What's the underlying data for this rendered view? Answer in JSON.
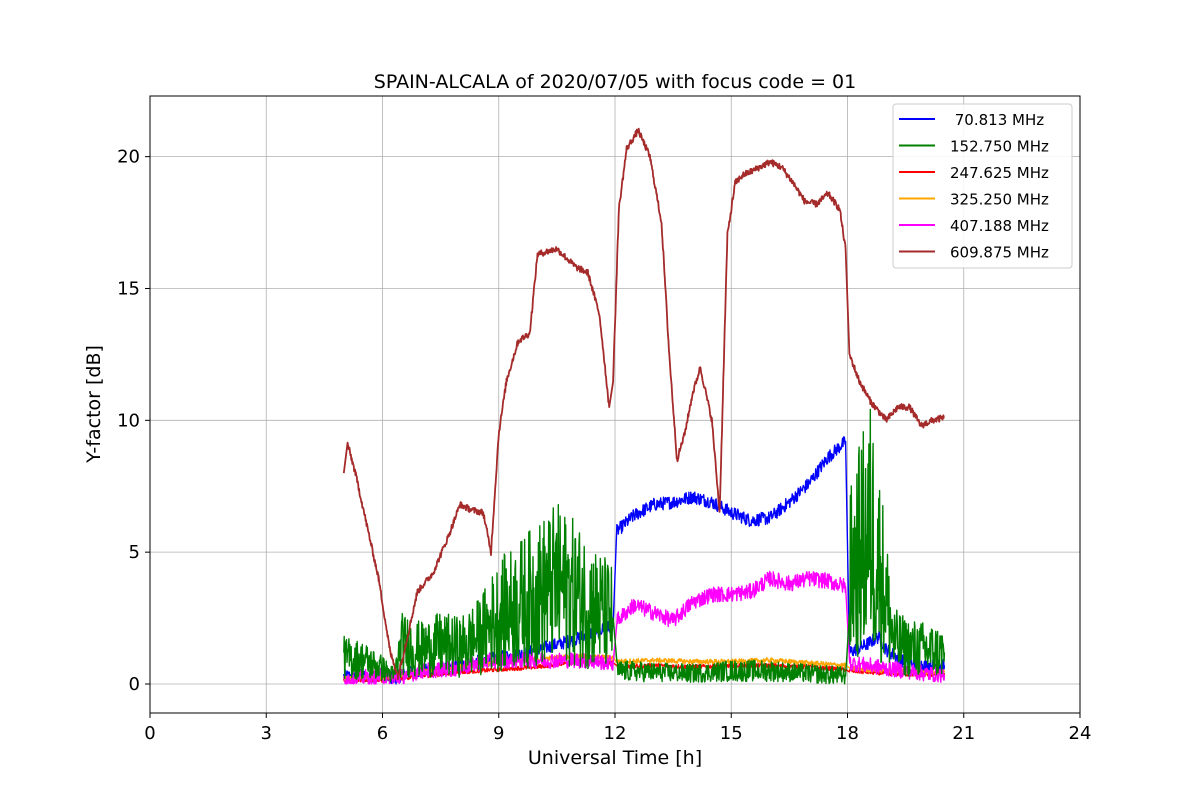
{
  "chart_data": {
    "type": "line",
    "title": "SPAIN-ALCALA of 2020/07/05 with focus code = 01",
    "xlabel": "Universal Time [h]",
    "ylabel": "Y-factor [dB]",
    "xlim": [
      0,
      24
    ],
    "ylim": [
      -1.1,
      22.3
    ],
    "xticks": [
      0,
      3,
      6,
      9,
      12,
      15,
      18,
      21,
      24
    ],
    "yticks": [
      0,
      5,
      10,
      15,
      20
    ],
    "xtick_labels": [
      "0",
      "3",
      "6",
      "9",
      "12",
      "15",
      "18",
      "21",
      "24"
    ],
    "ytick_labels": [
      "0",
      "5",
      "10",
      "15",
      "20"
    ],
    "grid": true,
    "legend_position": "top-right",
    "series": [
      {
        "name": " 70.813 MHz",
        "color": "#0000ff",
        "x": [
          5.0,
          5.5,
          6.0,
          6.3,
          6.5,
          7.0,
          7.5,
          8.0,
          8.5,
          9.0,
          9.5,
          10.0,
          10.5,
          11.0,
          11.5,
          11.95,
          12.05,
          12.5,
          13.0,
          13.5,
          14.0,
          14.5,
          15.0,
          15.5,
          16.0,
          16.5,
          17.0,
          17.5,
          17.95,
          18.05,
          18.5,
          18.8,
          19.0,
          19.5,
          20.0,
          20.5
        ],
        "y": [
          0.3,
          0.3,
          0.35,
          0.2,
          0.35,
          0.5,
          0.55,
          0.7,
          0.85,
          1.0,
          1.1,
          1.3,
          1.5,
          1.7,
          2.0,
          2.2,
          5.8,
          6.4,
          6.8,
          6.9,
          7.1,
          6.9,
          6.5,
          6.2,
          6.3,
          6.9,
          7.6,
          8.6,
          9.2,
          1.2,
          1.5,
          1.8,
          1.3,
          0.8,
          0.7,
          0.7
        ],
        "noise": 0.25
      },
      {
        "name": "152.750 MHz",
        "color": "#008000",
        "x": [
          5.0,
          5.5,
          6.0,
          6.3,
          6.5,
          7.0,
          7.5,
          8.0,
          8.5,
          9.0,
          9.5,
          10.0,
          10.5,
          11.0,
          11.5,
          11.95,
          12.05,
          13.0,
          14.0,
          15.0,
          16.0,
          17.0,
          17.95,
          18.05,
          18.3,
          18.6,
          18.9,
          19.2,
          19.5,
          20.0,
          20.5
        ],
        "y": [
          1.0,
          0.9,
          0.6,
          0.3,
          1.5,
          1.3,
          1.5,
          1.4,
          1.8,
          2.6,
          3.0,
          3.4,
          3.8,
          3.4,
          2.9,
          2.5,
          0.5,
          0.45,
          0.4,
          0.5,
          0.5,
          0.4,
          0.3,
          4.0,
          5.0,
          6.0,
          4.0,
          1.6,
          1.4,
          1.3,
          1.2
        ],
        "noise": 1.8
      },
      {
        "name": "247.625 MHz",
        "color": "#ff0000",
        "x": [
          5.0,
          6.0,
          7.0,
          8.0,
          9.0,
          10.0,
          11.0,
          11.95,
          12.05,
          13.0,
          14.0,
          15.0,
          16.0,
          17.0,
          17.95,
          18.05,
          19.0,
          20.0,
          20.5
        ],
        "y": [
          0.15,
          0.15,
          0.3,
          0.45,
          0.55,
          0.65,
          0.85,
          0.8,
          0.65,
          0.7,
          0.65,
          0.7,
          0.7,
          0.65,
          0.55,
          0.5,
          0.4,
          0.35,
          0.35
        ],
        "noise": 0.08
      },
      {
        "name": "325.250 MHz",
        "color": "#ffa500",
        "x": [
          5.0,
          6.0,
          7.0,
          8.0,
          9.0,
          10.0,
          11.0,
          11.95,
          12.05,
          13.0,
          14.0,
          15.0,
          16.0,
          17.0,
          17.95,
          18.05,
          19.0,
          20.0,
          20.5
        ],
        "y": [
          0.2,
          0.25,
          0.45,
          0.65,
          0.8,
          0.95,
          1.05,
          1.0,
          0.85,
          0.9,
          0.85,
          0.85,
          0.9,
          0.8,
          0.7,
          0.6,
          0.5,
          0.45,
          0.45
        ],
        "noise": 0.09
      },
      {
        "name": "407.188 MHz",
        "color": "#ff00ff",
        "x": [
          5.0,
          6.0,
          6.3,
          7.0,
          8.0,
          8.5,
          9.0,
          10.0,
          11.0,
          11.5,
          11.95,
          12.05,
          12.5,
          13.0,
          13.5,
          14.0,
          14.5,
          15.0,
          15.5,
          16.0,
          16.5,
          17.0,
          17.5,
          17.95,
          18.05,
          19.0,
          20.0,
          20.5
        ],
        "y": [
          0.2,
          0.3,
          0.2,
          0.5,
          0.6,
          0.8,
          0.9,
          0.9,
          0.9,
          0.85,
          0.8,
          2.4,
          3.0,
          2.7,
          2.4,
          3.1,
          3.4,
          3.4,
          3.5,
          4.0,
          3.8,
          4.0,
          3.9,
          3.7,
          0.8,
          0.6,
          0.4,
          0.35
        ],
        "noise": 0.3
      },
      {
        "name": "609.875 MHz",
        "color": "#a52a2a",
        "x": [
          5.0,
          5.1,
          5.3,
          5.6,
          5.9,
          6.2,
          6.4,
          6.6,
          6.9,
          7.3,
          7.7,
          8.0,
          8.3,
          8.6,
          8.8,
          9.0,
          9.2,
          9.5,
          9.8,
          10.0,
          10.5,
          11.0,
          11.3,
          11.6,
          11.85,
          11.95,
          12.1,
          12.3,
          12.6,
          12.9,
          13.2,
          13.4,
          13.6,
          13.8,
          14.0,
          14.2,
          14.5,
          14.7,
          14.9,
          15.1,
          15.3,
          15.6,
          16.0,
          16.3,
          16.6,
          16.9,
          17.2,
          17.5,
          17.8,
          17.95,
          18.05,
          18.3,
          18.6,
          19.0,
          19.3,
          19.6,
          19.9,
          20.2,
          20.5
        ],
        "y": [
          8.0,
          9.1,
          8.0,
          6.0,
          4.0,
          1.2,
          0.3,
          1.5,
          3.5,
          4.2,
          5.6,
          6.8,
          6.6,
          6.5,
          5.0,
          9.5,
          11.5,
          13.0,
          13.3,
          16.3,
          16.5,
          15.8,
          15.6,
          14.0,
          10.5,
          11.5,
          18.0,
          20.3,
          21.0,
          20.0,
          17.5,
          12.5,
          8.5,
          9.5,
          11.0,
          12.0,
          10.0,
          6.5,
          17.0,
          19.0,
          19.3,
          19.5,
          19.8,
          19.6,
          19.0,
          18.3,
          18.2,
          18.6,
          18.0,
          16.5,
          12.5,
          11.5,
          10.7,
          10.0,
          10.5,
          10.5,
          9.8,
          10.0,
          10.1
        ],
        "noise": 0.12
      }
    ]
  }
}
